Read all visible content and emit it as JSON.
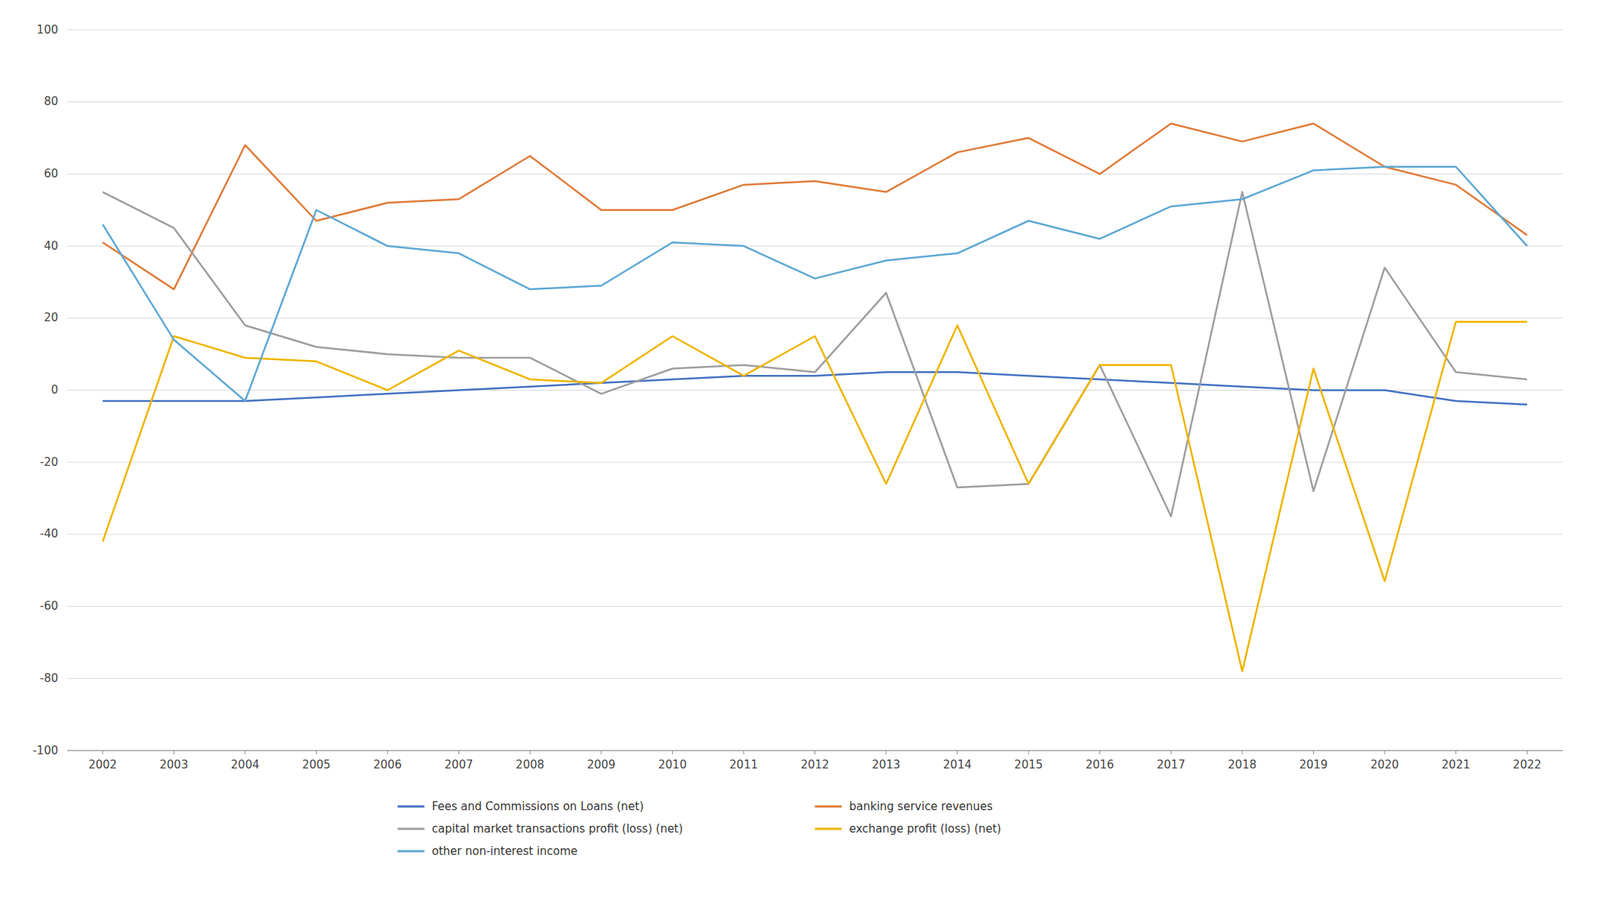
{
  "chart_data": {
    "type": "line",
    "x": [
      2002,
      2003,
      2004,
      2005,
      2006,
      2007,
      2008,
      2009,
      2010,
      2011,
      2012,
      2013,
      2014,
      2015,
      2016,
      2017,
      2018,
      2019,
      2020,
      2021,
      2022
    ],
    "xlim": [
      2001.5,
      2022.5
    ],
    "xticks": [
      2002,
      2003,
      2004,
      2005,
      2006,
      2007,
      2008,
      2009,
      2010,
      2011,
      2012,
      2013,
      2014,
      2015,
      2016,
      2017,
      2018,
      2019,
      2020,
      2021,
      2022
    ],
    "ylim": [
      -100,
      100
    ],
    "yticks": [
      -100,
      -80,
      -60,
      -40,
      -20,
      0,
      20,
      40,
      60,
      80,
      100
    ],
    "grid": true,
    "legend": "bottom",
    "series": [
      {
        "name": "Fees and Commissions on Loans (net)",
        "color": "#4472c4",
        "values": [
          -3,
          -3,
          -3,
          -2,
          -1,
          0,
          1,
          2,
          3,
          4,
          4,
          5,
          5,
          4,
          3,
          2,
          1,
          0,
          0,
          -3,
          -4
        ]
      },
      {
        "name": "banking service revenues",
        "color": "#e07b39",
        "values": [
          41,
          28,
          68,
          47,
          52,
          53,
          65,
          50,
          50,
          57,
          58,
          55,
          66,
          70,
          60,
          74,
          69,
          74,
          62,
          57,
          43
        ]
      },
      {
        "name": "capital market transactions profit (loss) (net)",
        "color": "#9e9e9e",
        "values": [
          55,
          45,
          18,
          12,
          10,
          9,
          9,
          -1,
          6,
          7,
          5,
          27,
          -27,
          -26,
          7,
          -35,
          55,
          -28,
          34,
          5,
          3
        ]
      },
      {
        "name": "exchange profit (loss) (net)",
        "color": "#f0b400",
        "values": [
          -42,
          15,
          9,
          8,
          0,
          11,
          3,
          2,
          15,
          4,
          15,
          -26,
          18,
          -26,
          7,
          7,
          -78,
          6,
          -53,
          19,
          19
        ]
      },
      {
        "name": "other non-interest income",
        "color": "#5da8d4",
        "values": [
          46,
          14,
          -3,
          50,
          40,
          38,
          28,
          29,
          41,
          40,
          31,
          36,
          38,
          47,
          42,
          51,
          53,
          61,
          62,
          62,
          40
        ]
      }
    ]
  }
}
